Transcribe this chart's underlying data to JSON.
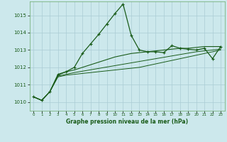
{
  "title": "Graphe pression niveau de la mer (hPa)",
  "background_color": "#cce8ec",
  "grid_color": "#aaccd4",
  "line_color": "#1a5c1a",
  "x_labels": [
    "0",
    "1",
    "2",
    "3",
    "4",
    "5",
    "6",
    "7",
    "8",
    "9",
    "10",
    "11",
    "12",
    "13",
    "14",
    "15",
    "16",
    "17",
    "18",
    "19",
    "20",
    "21",
    "22",
    "23"
  ],
  "ylim": [
    1009.5,
    1015.8
  ],
  "yticks": [
    1010,
    1011,
    1012,
    1013,
    1014,
    1015
  ],
  "series0": [
    1010.3,
    1010.1,
    1010.6,
    1011.6,
    1011.75,
    1012.0,
    1012.8,
    1013.35,
    1013.9,
    1014.5,
    1015.1,
    1015.65,
    1013.85,
    1013.0,
    1012.9,
    1012.9,
    1012.85,
    1013.25,
    1013.1,
    1013.05,
    1013.0,
    1013.1,
    1012.5,
    1013.2
  ],
  "series1": [
    1010.3,
    1010.1,
    1010.6,
    1011.55,
    1011.75,
    1011.85,
    1012.0,
    1012.15,
    1012.3,
    1012.45,
    1012.6,
    1012.7,
    1012.8,
    1012.85,
    1012.9,
    1012.95,
    1013.0,
    1013.05,
    1013.1,
    1013.1,
    1013.15,
    1013.2,
    1013.2,
    1013.2
  ],
  "series2": [
    1010.3,
    1010.1,
    1010.6,
    1011.5,
    1011.6,
    1011.7,
    1011.78,
    1011.86,
    1011.94,
    1012.02,
    1012.1,
    1012.18,
    1012.26,
    1012.34,
    1012.42,
    1012.5,
    1012.58,
    1012.66,
    1012.74,
    1012.82,
    1012.9,
    1012.95,
    1013.0,
    1013.05
  ],
  "series3": [
    1010.3,
    1010.1,
    1010.6,
    1011.45,
    1011.55,
    1011.6,
    1011.65,
    1011.7,
    1011.75,
    1011.8,
    1011.85,
    1011.9,
    1011.95,
    1012.0,
    1012.1,
    1012.2,
    1012.3,
    1012.4,
    1012.5,
    1012.6,
    1012.7,
    1012.8,
    1012.9,
    1013.0
  ]
}
